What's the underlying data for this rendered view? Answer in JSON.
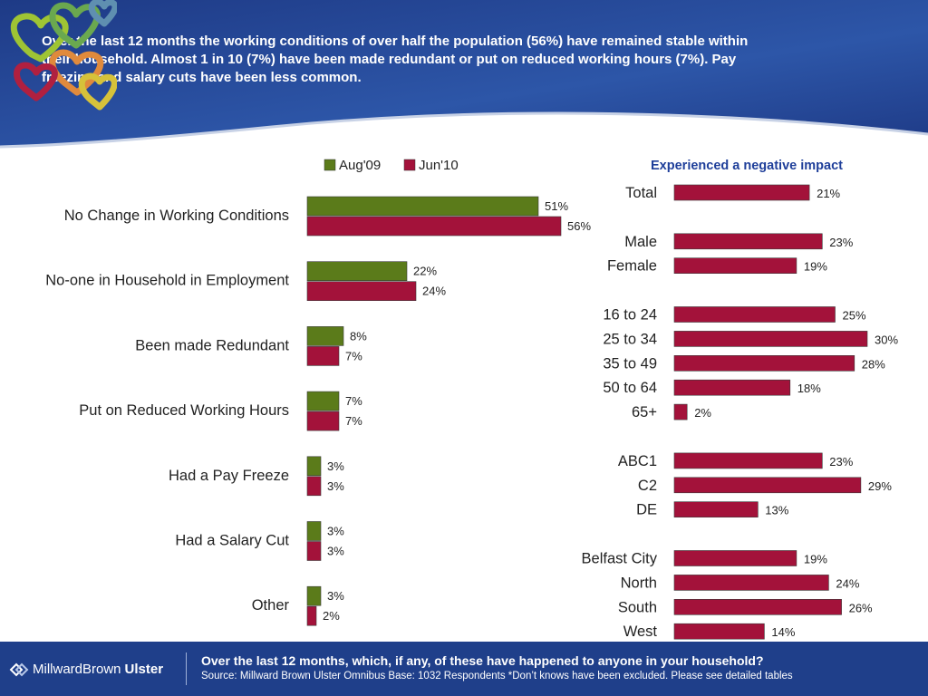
{
  "headline": "Over the last 12 months the working conditions of over half the population (56%) have remained stable within their household.  Almost 1 in 10 (7%) have been made redundant or put on reduced working hours (7%).  Pay freezing and salary cuts have been less common.",
  "footer": {
    "brand_part1": "MillwardBrown",
    "brand_part2": "Ulster",
    "question": "Over the last 12 months, which, if any, of these have happened to anyone in your household?",
    "source": "Source: Millward Brown Ulster Omnibus  Base: 1032 Respondents  *Don’t knows have been excluded.  Please see detailed tables"
  },
  "colors": {
    "header_blue": "#2a4a9a",
    "aug09": "#5b7b1a",
    "jun10": "#a3123a",
    "right_title": "#1f3f9a"
  },
  "chart_data": [
    {
      "type": "bar",
      "orientation": "horizontal",
      "categories": [
        "No Change in Working Conditions",
        "No-one in Household  in Employment",
        "Been made Redundant",
        "Put on Reduced Working Hours",
        "Had a Pay Freeze",
        "Had a Salary Cut",
        "Other"
      ],
      "series": [
        {
          "name": "Aug'09",
          "values": [
            51,
            22,
            8,
            7,
            3,
            3,
            3
          ],
          "labels": [
            "51%",
            "22%",
            "8%",
            "7%",
            "3%",
            "3%",
            "3%"
          ]
        },
        {
          "name": "Jun'10",
          "values": [
            56,
            24,
            7,
            7,
            3,
            3,
            2
          ],
          "labels": [
            "56%",
            "24%",
            "7%",
            "7%",
            "3%",
            "3%",
            "2%"
          ]
        }
      ],
      "legend": "top"
    },
    {
      "type": "bar",
      "orientation": "horizontal",
      "title": "Experienced a negative impact",
      "groups": [
        {
          "categories": [
            "Total"
          ],
          "values": [
            21
          ],
          "labels": [
            "21%"
          ]
        },
        {
          "categories": [
            "Male",
            "Female"
          ],
          "values": [
            23,
            19
          ],
          "labels": [
            "23%",
            "19%"
          ]
        },
        {
          "categories": [
            "16 to 24",
            "25 to 34",
            "35 to 49",
            "50 to 64",
            "65+"
          ],
          "values": [
            25,
            30,
            28,
            18,
            2
          ],
          "labels": [
            "25%",
            "30%",
            "28%",
            "18%",
            "2%"
          ]
        },
        {
          "categories": [
            "ABC1",
            "C2",
            "DE"
          ],
          "values": [
            23,
            29,
            13
          ],
          "labels": [
            "23%",
            "29%",
            "13%"
          ]
        },
        {
          "categories": [
            "Belfast City",
            "North",
            "South",
            "West"
          ],
          "values": [
            19,
            24,
            26,
            14
          ],
          "labels": [
            "19%",
            "24%",
            "26%",
            "14%"
          ]
        }
      ]
    }
  ]
}
